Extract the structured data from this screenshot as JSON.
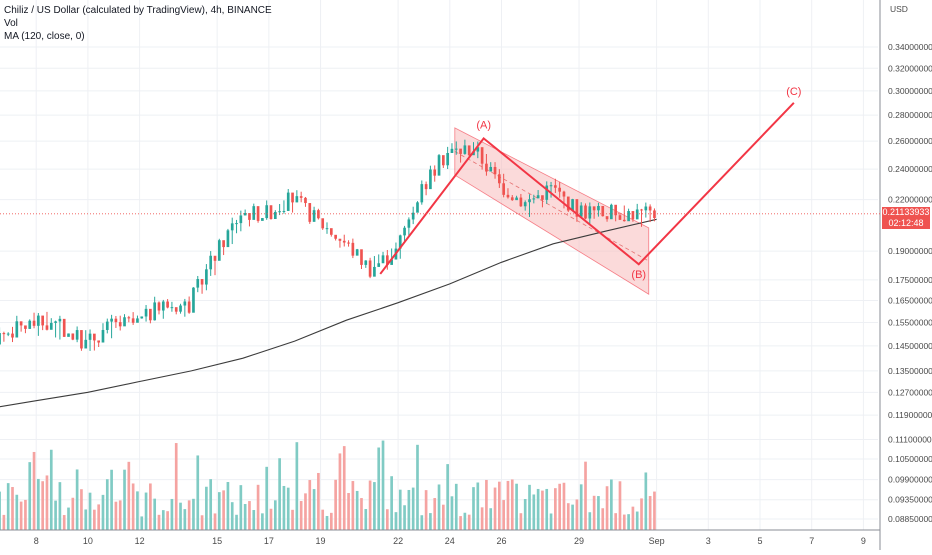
{
  "legend": {
    "title": "Chiliz / US Dollar (calculated by TradingView), 4h, BINANCE",
    "volume_label": "Vol",
    "ma_label": "MA (120, close, 0)"
  },
  "price_axis": {
    "currency": "USD",
    "current_price": "0.21133933",
    "countdown": "02:12:48",
    "current_price_value": 0.2113
  },
  "colors": {
    "up": "#26a69a",
    "down": "#ef5350",
    "volume_up": "#80cbc4",
    "volume_down": "#f5a3a1",
    "ma": "#3c3c3c",
    "annotation": "#f23645",
    "channel_fill": "#f8bbbb",
    "grid": "#eef0f4"
  },
  "chart_data": {
    "type": "candlestick",
    "timeframe": "4h",
    "symbol": "CHZUSD",
    "exchange": "BINANCE",
    "x_ticks": [
      "8",
      "10",
      "12",
      "15",
      "17",
      "19",
      "22",
      "24",
      "26",
      "29",
      "Sep",
      "3",
      "5",
      "7",
      "9"
    ],
    "y_ticks": [
      "0.34000000",
      "0.32000000",
      "0.30000000",
      "0.28000000",
      "0.26000000",
      "0.24000000",
      "0.22000000",
      "0.19000000",
      "0.17500000",
      "0.16500000",
      "0.15500000",
      "0.14500000",
      "0.13500000",
      "0.12700000",
      "0.11900000",
      "0.11100000",
      "0.10500000",
      "0.09900000",
      "0.09350000",
      "0.08850000"
    ],
    "y_scale": "log",
    "price_path": [
      {
        "date": "Aug 6",
        "close": 0.147
      },
      {
        "date": "Aug 7",
        "close": 0.151
      },
      {
        "date": "Aug 8",
        "close": 0.155
      },
      {
        "date": "Aug 9",
        "close": 0.153
      },
      {
        "date": "Aug 10",
        "close": 0.146
      },
      {
        "date": "Aug 11",
        "close": 0.154
      },
      {
        "date": "Aug 12",
        "close": 0.155
      },
      {
        "date": "Aug 13",
        "close": 0.163
      },
      {
        "date": "Aug 14",
        "close": 0.163
      },
      {
        "date": "Aug 15",
        "close": 0.188
      },
      {
        "date": "Aug 16",
        "close": 0.212
      },
      {
        "date": "Aug 17",
        "close": 0.212
      },
      {
        "date": "Aug 18",
        "close": 0.221
      },
      {
        "date": "Aug 19",
        "close": 0.207
      },
      {
        "date": "Aug 20",
        "close": 0.195
      },
      {
        "date": "Aug 21",
        "close": 0.181
      },
      {
        "date": "Aug 22",
        "close": 0.19
      },
      {
        "date": "Aug 23",
        "close": 0.228
      },
      {
        "date": "Aug 24",
        "close": 0.252
      },
      {
        "date": "Aug 25",
        "close": 0.255
      },
      {
        "date": "Aug 26",
        "close": 0.23
      },
      {
        "date": "Aug 27",
        "close": 0.218
      },
      {
        "date": "Aug 28",
        "close": 0.228
      },
      {
        "date": "Aug 29",
        "close": 0.214
      },
      {
        "date": "Aug 30",
        "close": 0.212
      },
      {
        "date": "Aug 31",
        "close": 0.212
      },
      {
        "date": "Sep 1",
        "close": 0.211
      }
    ],
    "ma_120": [
      {
        "date": "Aug 6",
        "value": 0.121
      },
      {
        "date": "Aug 8",
        "value": 0.124
      },
      {
        "date": "Aug 10",
        "value": 0.127
      },
      {
        "date": "Aug 12",
        "value": 0.131
      },
      {
        "date": "Aug 14",
        "value": 0.135
      },
      {
        "date": "Aug 16",
        "value": 0.14
      },
      {
        "date": "Aug 18",
        "value": 0.147
      },
      {
        "date": "Aug 20",
        "value": 0.156
      },
      {
        "date": "Aug 22",
        "value": 0.164
      },
      {
        "date": "Aug 24",
        "value": 0.173
      },
      {
        "date": "Aug 26",
        "value": 0.184
      },
      {
        "date": "Aug 28",
        "value": 0.194
      },
      {
        "date": "Aug 30",
        "value": 0.201
      },
      {
        "date": "Sep 1",
        "value": 0.208
      }
    ],
    "volume_scale": "relative 0-1",
    "annotations": {
      "wave_labels": [
        "(A)",
        "(B)",
        "(C)"
      ],
      "wave_points": [
        {
          "date": "Aug 21",
          "price": 0.178
        },
        {
          "date": "Aug 25",
          "price": 0.262
        },
        {
          "date": "Aug 31",
          "price": 0.183
        },
        {
          "date": "Sep 6",
          "price": 0.29
        }
      ],
      "channel": "descending parallel channel from Aug 24 to Sep 1"
    },
    "grid": true,
    "legend_position": "top-left"
  }
}
